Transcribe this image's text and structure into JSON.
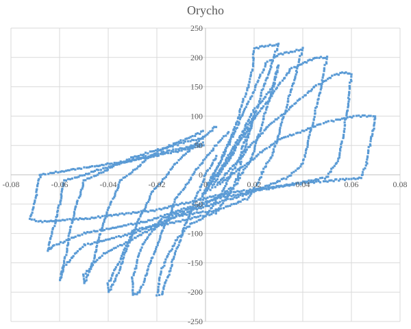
{
  "chart_data": {
    "type": "scatter",
    "title": "Orycho",
    "xlabel": "",
    "ylabel": "",
    "xlim": [
      -0.08,
      0.08
    ],
    "ylim": [
      -250,
      250
    ],
    "x_ticks": [
      -0.08,
      -0.06,
      -0.04,
      -0.02,
      0,
      0.02,
      0.04,
      0.06,
      0.08
    ],
    "y_ticks": [
      -250,
      -200,
      -150,
      -100,
      -50,
      0,
      50,
      100,
      150,
      200,
      250
    ],
    "x_tick_labels": [
      "-0.08",
      "-0.06",
      "-0.04",
      "-0.02",
      "0",
      "0.02",
      "0.04",
      "0.06",
      "0.08"
    ],
    "y_tick_labels": [
      "-250",
      "-200",
      "-150",
      "-100",
      "-50",
      "0",
      "50",
      "100",
      "150",
      "200",
      "250"
    ],
    "grid": true,
    "legend": "none",
    "marker_color": "#5B9BD5",
    "grid_color": "#D9D9D9",
    "series": [
      {
        "loops": [
          [
            [
              -0.002,
              -40
            ],
            [
              0.005,
              0
            ],
            [
              0.012,
              45
            ],
            [
              0.02,
              100
            ],
            [
              0.02,
              100
            ],
            [
              0.013,
              20
            ],
            [
              0.006,
              -35
            ],
            [
              0,
              -70
            ],
            [
              -0.006,
              -85
            ],
            [
              -0.012,
              -110
            ],
            [
              -0.018,
              -160
            ],
            [
              -0.02,
              -205
            ],
            [
              -0.018,
              -205
            ],
            [
              -0.012,
              -130
            ],
            [
              -0.006,
              -60
            ],
            [
              0,
              0
            ],
            [
              0.005,
              35
            ]
          ],
          [
            [
              -0.002,
              -40
            ],
            [
              0.01,
              35
            ],
            [
              0.02,
              110
            ],
            [
              0.028,
              150
            ],
            [
              0.03,
              185
            ],
            [
              0.03,
              185
            ],
            [
              0.025,
              110
            ],
            [
              0.019,
              30
            ],
            [
              0.012,
              -20
            ],
            [
              0,
              -50
            ],
            [
              -0.008,
              -60
            ],
            [
              -0.018,
              -75
            ],
            [
              -0.026,
              -120
            ],
            [
              -0.03,
              -175
            ],
            [
              -0.03,
              -205
            ],
            [
              -0.027,
              -200
            ],
            [
              -0.02,
              -120
            ],
            [
              -0.012,
              -40
            ],
            [
              0,
              30
            ],
            [
              0.01,
              75
            ]
          ],
          [
            [
              -0.002,
              -40
            ],
            [
              0.01,
              55
            ],
            [
              0.019,
              170
            ],
            [
              0.02,
              215
            ],
            [
              0.025,
              220
            ],
            [
              0.03,
              222
            ],
            [
              0.024,
              150
            ],
            [
              0.017,
              60
            ],
            [
              0.012,
              -20
            ],
            [
              0.004,
              -65
            ],
            [
              -0.012,
              -80
            ],
            [
              -0.03,
              -95
            ],
            [
              -0.035,
              -145
            ],
            [
              -0.04,
              -185
            ],
            [
              -0.04,
              -200
            ],
            [
              -0.037,
              -180
            ],
            [
              -0.03,
              -100
            ],
            [
              -0.022,
              -30
            ],
            [
              -0.01,
              30
            ],
            [
              0.005,
              85
            ]
          ],
          [
            [
              0,
              -30
            ],
            [
              0.015,
              100
            ],
            [
              0.025,
              190
            ],
            [
              0.03,
              205
            ],
            [
              0.036,
              210
            ],
            [
              0.04,
              215
            ],
            [
              0.035,
              140
            ],
            [
              0.028,
              40
            ],
            [
              0.018,
              -40
            ],
            [
              0.005,
              -60
            ],
            [
              -0.012,
              -70
            ],
            [
              -0.03,
              -110
            ],
            [
              -0.042,
              -135
            ],
            [
              -0.05,
              -170
            ],
            [
              -0.05,
              -185
            ],
            [
              -0.047,
              -160
            ],
            [
              -0.042,
              -80
            ],
            [
              -0.035,
              -10
            ],
            [
              -0.02,
              40
            ],
            [
              0,
              75
            ]
          ],
          [
            [
              0.002,
              -25
            ],
            [
              0.02,
              95
            ],
            [
              0.035,
              180
            ],
            [
              0.04,
              190
            ],
            [
              0.046,
              200
            ],
            [
              0.05,
              200
            ],
            [
              0.046,
              120
            ],
            [
              0.04,
              20
            ],
            [
              0.034,
              -5
            ],
            [
              0.015,
              -35
            ],
            [
              -0.005,
              -60
            ],
            [
              -0.03,
              -100
            ],
            [
              -0.05,
              -120
            ],
            [
              -0.058,
              -155
            ],
            [
              -0.06,
              -180
            ],
            [
              -0.058,
              -150
            ],
            [
              -0.055,
              -80
            ],
            [
              -0.05,
              -10
            ],
            [
              -0.03,
              30
            ],
            [
              0,
              65
            ]
          ],
          [
            [
              0.004,
              -20
            ],
            [
              0.025,
              80
            ],
            [
              0.045,
              150
            ],
            [
              0.053,
              170
            ],
            [
              0.058,
              175
            ],
            [
              0.06,
              170
            ],
            [
              0.058,
              100
            ],
            [
              0.055,
              30
            ],
            [
              0.05,
              -5
            ],
            [
              0.03,
              -20
            ],
            [
              0.005,
              -40
            ],
            [
              -0.025,
              -80
            ],
            [
              -0.05,
              -100
            ],
            [
              -0.062,
              -120
            ],
            [
              -0.065,
              -130
            ],
            [
              -0.063,
              -100
            ],
            [
              -0.06,
              -50
            ],
            [
              -0.058,
              -10
            ],
            [
              -0.035,
              20
            ],
            [
              0,
              55
            ]
          ],
          [
            [
              0.006,
              -15
            ],
            [
              0.03,
              60
            ],
            [
              0.05,
              90
            ],
            [
              0.062,
              100
            ],
            [
              0.07,
              100
            ],
            [
              0.068,
              60
            ],
            [
              0.066,
              15
            ],
            [
              0.064,
              -5
            ],
            [
              0.04,
              -15
            ],
            [
              0.01,
              -30
            ],
            [
              -0.02,
              -60
            ],
            [
              -0.05,
              -75
            ],
            [
              -0.068,
              -80
            ],
            [
              -0.072,
              -75
            ],
            [
              -0.07,
              -40
            ],
            [
              -0.068,
              0
            ],
            [
              -0.06,
              5
            ],
            [
              -0.03,
              25
            ],
            [
              0,
              50
            ]
          ]
        ]
      }
    ]
  }
}
